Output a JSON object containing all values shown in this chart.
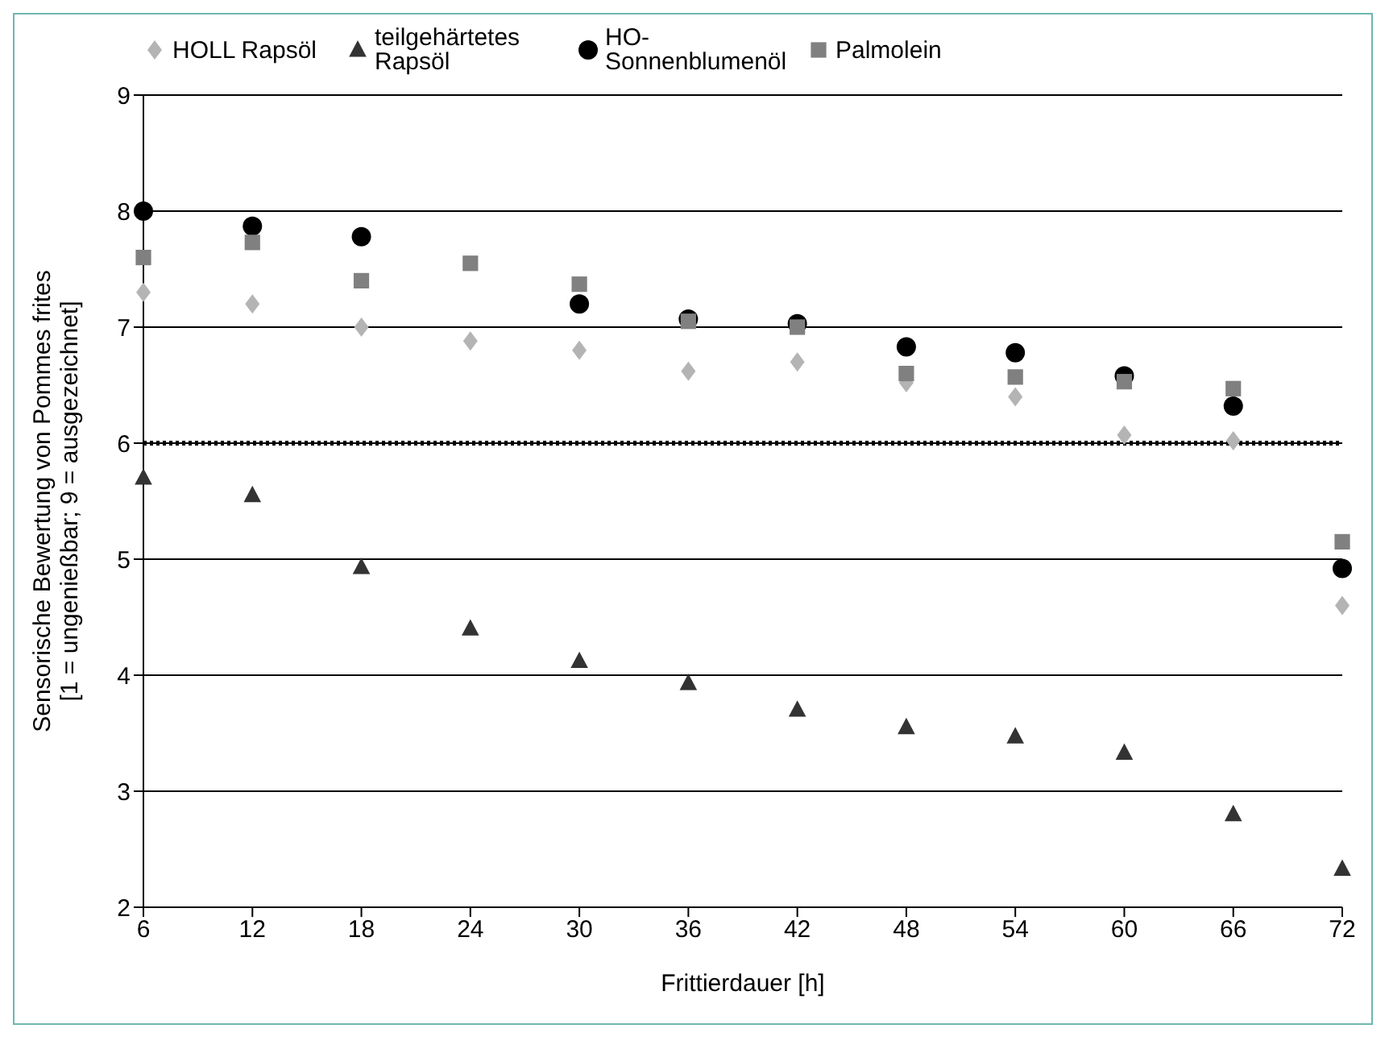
{
  "chart_data": {
    "type": "scatter",
    "xlabel": "Frittierdauer [h]",
    "ylabel": "Sensorische Bewertung von Pommes frites [1 = ungenießbar; 9 = ausgezeichnet]",
    "x": [
      6,
      12,
      18,
      24,
      30,
      36,
      42,
      48,
      54,
      60,
      66,
      72
    ],
    "xlim": [
      6,
      72
    ],
    "xticks": [
      6,
      12,
      18,
      24,
      30,
      36,
      42,
      48,
      54,
      60,
      66,
      72
    ],
    "ylim": [
      2,
      9
    ],
    "yticks": [
      2,
      3,
      4,
      5,
      6,
      7,
      8,
      9
    ],
    "grid": "y",
    "legend": "top",
    "ref_lines": [
      {
        "axis": "y",
        "value": 6,
        "color": "#000000",
        "line_style": "dotted"
      }
    ],
    "series": [
      {
        "name": "HOLL Rapsöl",
        "color": "#b4b4b4",
        "marker": "diamond",
        "values": [
          7.3,
          7.2,
          7.0,
          6.88,
          6.8,
          6.62,
          6.7,
          6.52,
          6.4,
          6.07,
          6.02,
          4.6
        ]
      },
      {
        "name": "teilgehärtetes Rapsöl",
        "color": "#333333",
        "marker": "triangle",
        "values": [
          5.7,
          5.55,
          4.93,
          4.4,
          4.12,
          3.93,
          3.7,
          3.55,
          3.47,
          3.33,
          2.8,
          2.33
        ]
      },
      {
        "name": "HO-Sonnenblumenöl",
        "color": "#000000",
        "marker": "circle",
        "values": [
          8.0,
          7.87,
          7.78,
          null,
          7.2,
          7.07,
          7.03,
          6.83,
          6.78,
          6.58,
          6.32,
          4.92
        ]
      },
      {
        "name": "Palmolein",
        "color": "#808080",
        "marker": "square",
        "values": [
          7.6,
          7.73,
          7.4,
          7.55,
          7.37,
          7.05,
          7.0,
          6.6,
          6.57,
          6.53,
          6.47,
          5.15
        ]
      }
    ]
  }
}
